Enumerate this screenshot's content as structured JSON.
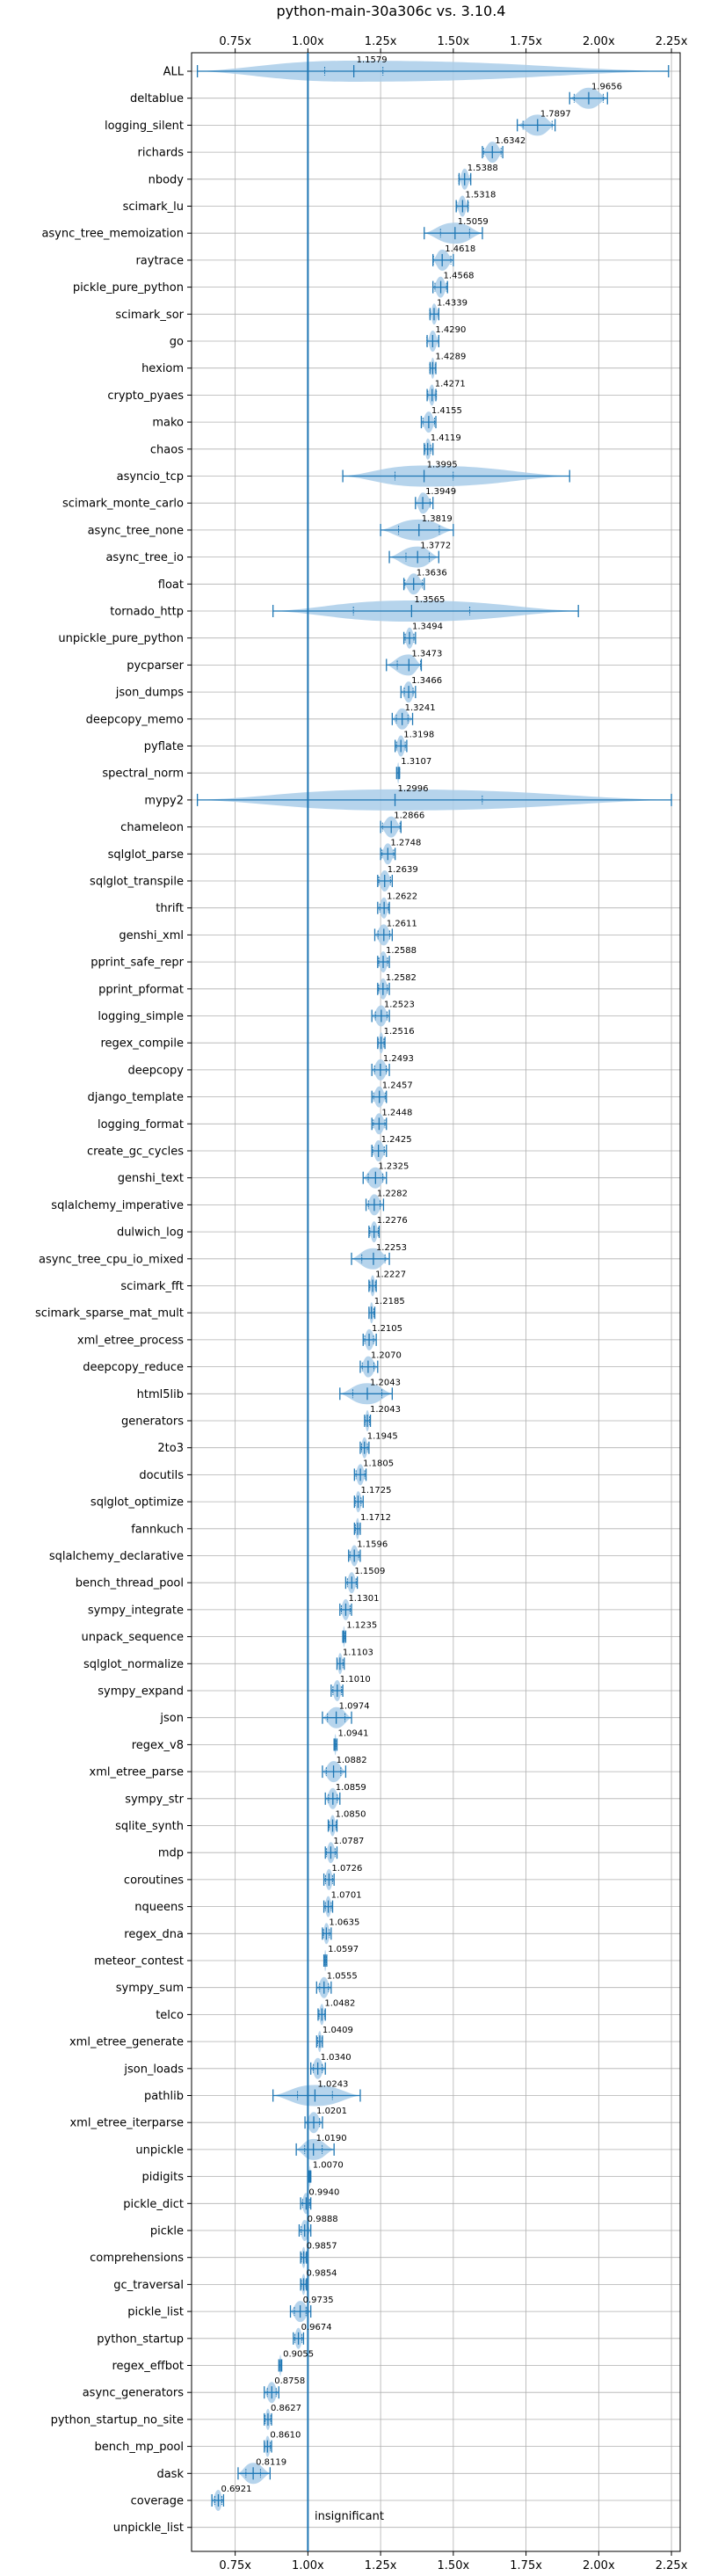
{
  "chart_data": {
    "type": "violin",
    "title": "python-main-30a306c vs. 3.10.4",
    "xlim": [
      0.6,
      2.28
    ],
    "xticks": [
      0.75,
      1.0,
      1.25,
      1.5,
      1.75,
      2.0,
      2.25
    ],
    "xtick_labels": [
      "0.75x",
      "1.00x",
      "1.25x",
      "1.50x",
      "1.75x",
      "2.00x",
      "2.25x"
    ],
    "reference_line": 1.0,
    "reference_label": "insignificant",
    "grid": true,
    "colors": {
      "violin_fill": "#a9cce9",
      "line": "#1f77b4"
    },
    "benchmarks": [
      {
        "name": "ALL",
        "value": 1.1579,
        "label": "1.1579",
        "min": 0.62,
        "max": 2.24,
        "spread": 0.1
      },
      {
        "name": "deltablue",
        "value": 1.9656,
        "label": "1.9656",
        "min": 1.9,
        "max": 2.03,
        "spread": 0.05
      },
      {
        "name": "logging_silent",
        "value": 1.7897,
        "label": "1.7897",
        "min": 1.72,
        "max": 1.85,
        "spread": 0.05
      },
      {
        "name": "richards",
        "value": 1.6342,
        "label": "1.6342",
        "min": 1.6,
        "max": 1.67,
        "spread": 0.03
      },
      {
        "name": "nbody",
        "value": 1.5388,
        "label": "1.5388",
        "min": 1.52,
        "max": 1.56,
        "spread": 0.02
      },
      {
        "name": "scimark_lu",
        "value": 1.5318,
        "label": "1.5318",
        "min": 1.51,
        "max": 1.55,
        "spread": 0.02
      },
      {
        "name": "async_tree_memoization",
        "value": 1.5059,
        "label": "1.5059",
        "min": 1.4,
        "max": 1.6,
        "spread": 0.05
      },
      {
        "name": "raytrace",
        "value": 1.4618,
        "label": "1.4618",
        "min": 1.43,
        "max": 1.5,
        "spread": 0.03
      },
      {
        "name": "pickle_pure_python",
        "value": 1.4568,
        "label": "1.4568",
        "min": 1.43,
        "max": 1.48,
        "spread": 0.02
      },
      {
        "name": "scimark_sor",
        "value": 1.4339,
        "label": "1.4339",
        "min": 1.42,
        "max": 1.45,
        "spread": 0.015
      },
      {
        "name": "go",
        "value": 1.429,
        "label": "1.4290",
        "min": 1.41,
        "max": 1.45,
        "spread": 0.02
      },
      {
        "name": "hexiom",
        "value": 1.4289,
        "label": "1.4289",
        "min": 1.42,
        "max": 1.44,
        "spread": 0.01
      },
      {
        "name": "crypto_pyaes",
        "value": 1.4271,
        "label": "1.4271",
        "min": 1.41,
        "max": 1.44,
        "spread": 0.015
      },
      {
        "name": "mako",
        "value": 1.4155,
        "label": "1.4155",
        "min": 1.39,
        "max": 1.44,
        "spread": 0.02
      },
      {
        "name": "chaos",
        "value": 1.4119,
        "label": "1.4119",
        "min": 1.4,
        "max": 1.43,
        "spread": 0.01
      },
      {
        "name": "asyncio_tcp",
        "value": 1.3995,
        "label": "1.3995",
        "min": 1.12,
        "max": 1.9,
        "spread": 0.1
      },
      {
        "name": "scimark_monte_carlo",
        "value": 1.3949,
        "label": "1.3949",
        "min": 1.37,
        "max": 1.43,
        "spread": 0.025
      },
      {
        "name": "async_tree_none",
        "value": 1.3819,
        "label": "1.3819",
        "min": 1.25,
        "max": 1.5,
        "spread": 0.07
      },
      {
        "name": "async_tree_io",
        "value": 1.3772,
        "label": "1.3772",
        "min": 1.28,
        "max": 1.45,
        "spread": 0.04
      },
      {
        "name": "float",
        "value": 1.3636,
        "label": "1.3636",
        "min": 1.33,
        "max": 1.4,
        "spread": 0.03
      },
      {
        "name": "tornado_http",
        "value": 1.3565,
        "label": "1.3565",
        "min": 0.88,
        "max": 1.93,
        "spread": 0.2
      },
      {
        "name": "unpickle_pure_python",
        "value": 1.3494,
        "label": "1.3494",
        "min": 1.33,
        "max": 1.37,
        "spread": 0.015
      },
      {
        "name": "pycparser",
        "value": 1.3473,
        "label": "1.3473",
        "min": 1.27,
        "max": 1.39,
        "spread": 0.04
      },
      {
        "name": "json_dumps",
        "value": 1.3466,
        "label": "1.3466",
        "min": 1.32,
        "max": 1.37,
        "spread": 0.015
      },
      {
        "name": "deepcopy_memo",
        "value": 1.3241,
        "label": "1.3241",
        "min": 1.29,
        "max": 1.36,
        "spread": 0.02
      },
      {
        "name": "pyflate",
        "value": 1.3198,
        "label": "1.3198",
        "min": 1.3,
        "max": 1.34,
        "spread": 0.015
      },
      {
        "name": "spectral_norm",
        "value": 1.3107,
        "label": "1.3107",
        "min": 1.305,
        "max": 1.315,
        "spread": 0.005
      },
      {
        "name": "mypy2",
        "value": 1.2996,
        "label": "1.2996",
        "min": 0.62,
        "max": 2.25,
        "spread": 0.3
      },
      {
        "name": "chameleon",
        "value": 1.2866,
        "label": "1.2866",
        "min": 1.25,
        "max": 1.32,
        "spread": 0.03
      },
      {
        "name": "sqlglot_parse",
        "value": 1.2748,
        "label": "1.2748",
        "min": 1.25,
        "max": 1.3,
        "spread": 0.02
      },
      {
        "name": "sqlglot_transpile",
        "value": 1.2639,
        "label": "1.2639",
        "min": 1.24,
        "max": 1.29,
        "spread": 0.02
      },
      {
        "name": "thrift",
        "value": 1.2622,
        "label": "1.2622",
        "min": 1.24,
        "max": 1.28,
        "spread": 0.015
      },
      {
        "name": "genshi_xml",
        "value": 1.2611,
        "label": "1.2611",
        "min": 1.23,
        "max": 1.29,
        "spread": 0.02
      },
      {
        "name": "pprint_safe_repr",
        "value": 1.2588,
        "label": "1.2588",
        "min": 1.24,
        "max": 1.28,
        "spread": 0.015
      },
      {
        "name": "pprint_pformat",
        "value": 1.2582,
        "label": "1.2582",
        "min": 1.24,
        "max": 1.28,
        "spread": 0.015
      },
      {
        "name": "logging_simple",
        "value": 1.2523,
        "label": "1.2523",
        "min": 1.22,
        "max": 1.28,
        "spread": 0.02
      },
      {
        "name": "regex_compile",
        "value": 1.2516,
        "label": "1.2516",
        "min": 1.24,
        "max": 1.265,
        "spread": 0.01
      },
      {
        "name": "deepcopy",
        "value": 1.2493,
        "label": "1.2493",
        "min": 1.22,
        "max": 1.28,
        "spread": 0.02
      },
      {
        "name": "django_template",
        "value": 1.2457,
        "label": "1.2457",
        "min": 1.22,
        "max": 1.27,
        "spread": 0.02
      },
      {
        "name": "logging_format",
        "value": 1.2448,
        "label": "1.2448",
        "min": 1.22,
        "max": 1.27,
        "spread": 0.02
      },
      {
        "name": "create_gc_cycles",
        "value": 1.2425,
        "label": "1.2425",
        "min": 1.22,
        "max": 1.27,
        "spread": 0.02
      },
      {
        "name": "genshi_text",
        "value": 1.2325,
        "label": "1.2325",
        "min": 1.19,
        "max": 1.27,
        "spread": 0.025
      },
      {
        "name": "sqlalchemy_imperative",
        "value": 1.2282,
        "label": "1.2282",
        "min": 1.2,
        "max": 1.26,
        "spread": 0.02
      },
      {
        "name": "dulwich_log",
        "value": 1.2276,
        "label": "1.2276",
        "min": 1.21,
        "max": 1.245,
        "spread": 0.015
      },
      {
        "name": "async_tree_cpu_io_mixed",
        "value": 1.2253,
        "label": "1.2253",
        "min": 1.15,
        "max": 1.28,
        "spread": 0.04
      },
      {
        "name": "scimark_fft",
        "value": 1.2227,
        "label": "1.2227",
        "min": 1.21,
        "max": 1.235,
        "spread": 0.01
      },
      {
        "name": "scimark_sparse_mat_mult",
        "value": 1.2185,
        "label": "1.2185",
        "min": 1.21,
        "max": 1.23,
        "spread": 0.008
      },
      {
        "name": "xml_etree_process",
        "value": 1.2105,
        "label": "1.2105",
        "min": 1.19,
        "max": 1.235,
        "spread": 0.015
      },
      {
        "name": "deepcopy_reduce",
        "value": 1.207,
        "label": "1.2070",
        "min": 1.18,
        "max": 1.24,
        "spread": 0.02
      },
      {
        "name": "html5lib",
        "value": 1.2043,
        "label": "1.2043",
        "min": 1.11,
        "max": 1.29,
        "spread": 0.05
      },
      {
        "name": "generators",
        "value": 1.2043,
        "label": "1.2043",
        "min": 1.195,
        "max": 1.215,
        "spread": 0.008
      },
      {
        "name": "2to3",
        "value": 1.1945,
        "label": "1.1945",
        "min": 1.18,
        "max": 1.21,
        "spread": 0.01
      },
      {
        "name": "docutils",
        "value": 1.1805,
        "label": "1.1805",
        "min": 1.16,
        "max": 1.2,
        "spread": 0.015
      },
      {
        "name": "sqlglot_optimize",
        "value": 1.1725,
        "label": "1.1725",
        "min": 1.16,
        "max": 1.19,
        "spread": 0.01
      },
      {
        "name": "fannkuch",
        "value": 1.1712,
        "label": "1.1712",
        "min": 1.16,
        "max": 1.18,
        "spread": 0.008
      },
      {
        "name": "sqlalchemy_declarative",
        "value": 1.1596,
        "label": "1.1596",
        "min": 1.14,
        "max": 1.18,
        "spread": 0.015
      },
      {
        "name": "bench_thread_pool",
        "value": 1.1509,
        "label": "1.1509",
        "min": 1.13,
        "max": 1.17,
        "spread": 0.015
      },
      {
        "name": "sympy_integrate",
        "value": 1.1301,
        "label": "1.1301",
        "min": 1.11,
        "max": 1.15,
        "spread": 0.015
      },
      {
        "name": "unpack_sequence",
        "value": 1.1235,
        "label": "1.1235",
        "min": 1.12,
        "max": 1.13,
        "spread": 0.004
      },
      {
        "name": "sqlglot_normalize",
        "value": 1.1103,
        "label": "1.1103",
        "min": 1.1,
        "max": 1.125,
        "spread": 0.01
      },
      {
        "name": "sympy_expand",
        "value": 1.101,
        "label": "1.1010",
        "min": 1.08,
        "max": 1.12,
        "spread": 0.015
      },
      {
        "name": "json",
        "value": 1.0974,
        "label": "1.0974",
        "min": 1.05,
        "max": 1.15,
        "spread": 0.03
      },
      {
        "name": "regex_v8",
        "value": 1.0941,
        "label": "1.0941",
        "min": 1.09,
        "max": 1.1,
        "spread": 0.004
      },
      {
        "name": "xml_etree_parse",
        "value": 1.0882,
        "label": "1.0882",
        "min": 1.05,
        "max": 1.13,
        "spread": 0.025
      },
      {
        "name": "sympy_str",
        "value": 1.0859,
        "label": "1.0859",
        "min": 1.06,
        "max": 1.11,
        "spread": 0.015
      },
      {
        "name": "sqlite_synth",
        "value": 1.085,
        "label": "1.0850",
        "min": 1.07,
        "max": 1.1,
        "spread": 0.012
      },
      {
        "name": "mdp",
        "value": 1.0787,
        "label": "1.0787",
        "min": 1.06,
        "max": 1.1,
        "spread": 0.015
      },
      {
        "name": "coroutines",
        "value": 1.0726,
        "label": "1.0726",
        "min": 1.055,
        "max": 1.09,
        "spread": 0.012
      },
      {
        "name": "nqueens",
        "value": 1.0701,
        "label": "1.0701",
        "min": 1.055,
        "max": 1.085,
        "spread": 0.01
      },
      {
        "name": "regex_dna",
        "value": 1.0635,
        "label": "1.0635",
        "min": 1.05,
        "max": 1.08,
        "spread": 0.01
      },
      {
        "name": "meteor_contest",
        "value": 1.0597,
        "label": "1.0597",
        "min": 1.055,
        "max": 1.065,
        "spread": 0.004
      },
      {
        "name": "sympy_sum",
        "value": 1.0555,
        "label": "1.0555",
        "min": 1.03,
        "max": 1.08,
        "spread": 0.015
      },
      {
        "name": "telco",
        "value": 1.0482,
        "label": "1.0482",
        "min": 1.035,
        "max": 1.06,
        "spread": 0.01
      },
      {
        "name": "xml_etree_generate",
        "value": 1.0409,
        "label": "1.0409",
        "min": 1.03,
        "max": 1.05,
        "spread": 0.008
      },
      {
        "name": "json_loads",
        "value": 1.034,
        "label": "1.0340",
        "min": 1.01,
        "max": 1.06,
        "spread": 0.015
      },
      {
        "name": "pathlib",
        "value": 1.0243,
        "label": "1.0243",
        "min": 0.88,
        "max": 1.18,
        "spread": 0.06
      },
      {
        "name": "xml_etree_iterparse",
        "value": 1.0201,
        "label": "1.0201",
        "min": 0.99,
        "max": 1.05,
        "spread": 0.02
      },
      {
        "name": "unpickle",
        "value": 1.019,
        "label": "1.0190",
        "min": 0.96,
        "max": 1.09,
        "spread": 0.03
      },
      {
        "name": "pidigits",
        "value": 1.007,
        "label": "1.0070",
        "min": 1.004,
        "max": 1.01,
        "spread": 0.003
      },
      {
        "name": "pickle_dict",
        "value": 0.994,
        "label": "0.9940",
        "min": 0.975,
        "max": 1.01,
        "spread": 0.012
      },
      {
        "name": "pickle",
        "value": 0.9888,
        "label": "0.9888",
        "min": 0.97,
        "max": 1.01,
        "spread": 0.012
      },
      {
        "name": "comprehensions",
        "value": 0.9857,
        "label": "0.9857",
        "min": 0.975,
        "max": 0.995,
        "spread": 0.008
      },
      {
        "name": "gc_traversal",
        "value": 0.9854,
        "label": "0.9854",
        "min": 0.975,
        "max": 0.995,
        "spread": 0.008
      },
      {
        "name": "pickle_list",
        "value": 0.9735,
        "label": "0.9735",
        "min": 0.94,
        "max": 1.01,
        "spread": 0.02
      },
      {
        "name": "python_startup",
        "value": 0.9674,
        "label": "0.9674",
        "min": 0.95,
        "max": 0.985,
        "spread": 0.012
      },
      {
        "name": "regex_effbot",
        "value": 0.9055,
        "label": "0.9055",
        "min": 0.9,
        "max": 0.91,
        "spread": 0.004
      },
      {
        "name": "async_generators",
        "value": 0.8758,
        "label": "0.8758",
        "min": 0.85,
        "max": 0.9,
        "spread": 0.015
      },
      {
        "name": "python_startup_no_site",
        "value": 0.8627,
        "label": "0.8627",
        "min": 0.85,
        "max": 0.875,
        "spread": 0.01
      },
      {
        "name": "bench_mp_pool",
        "value": 0.861,
        "label": "0.8610",
        "min": 0.85,
        "max": 0.875,
        "spread": 0.01
      },
      {
        "name": "dask",
        "value": 0.8119,
        "label": "0.8119",
        "min": 0.76,
        "max": 0.87,
        "spread": 0.025
      },
      {
        "name": "coverage",
        "value": 0.6921,
        "label": "0.6921",
        "min": 0.67,
        "max": 0.71,
        "spread": 0.012
      },
      {
        "name": "unpickle_list",
        "value": null,
        "label": "",
        "min": null,
        "max": null,
        "spread": 0
      }
    ]
  }
}
